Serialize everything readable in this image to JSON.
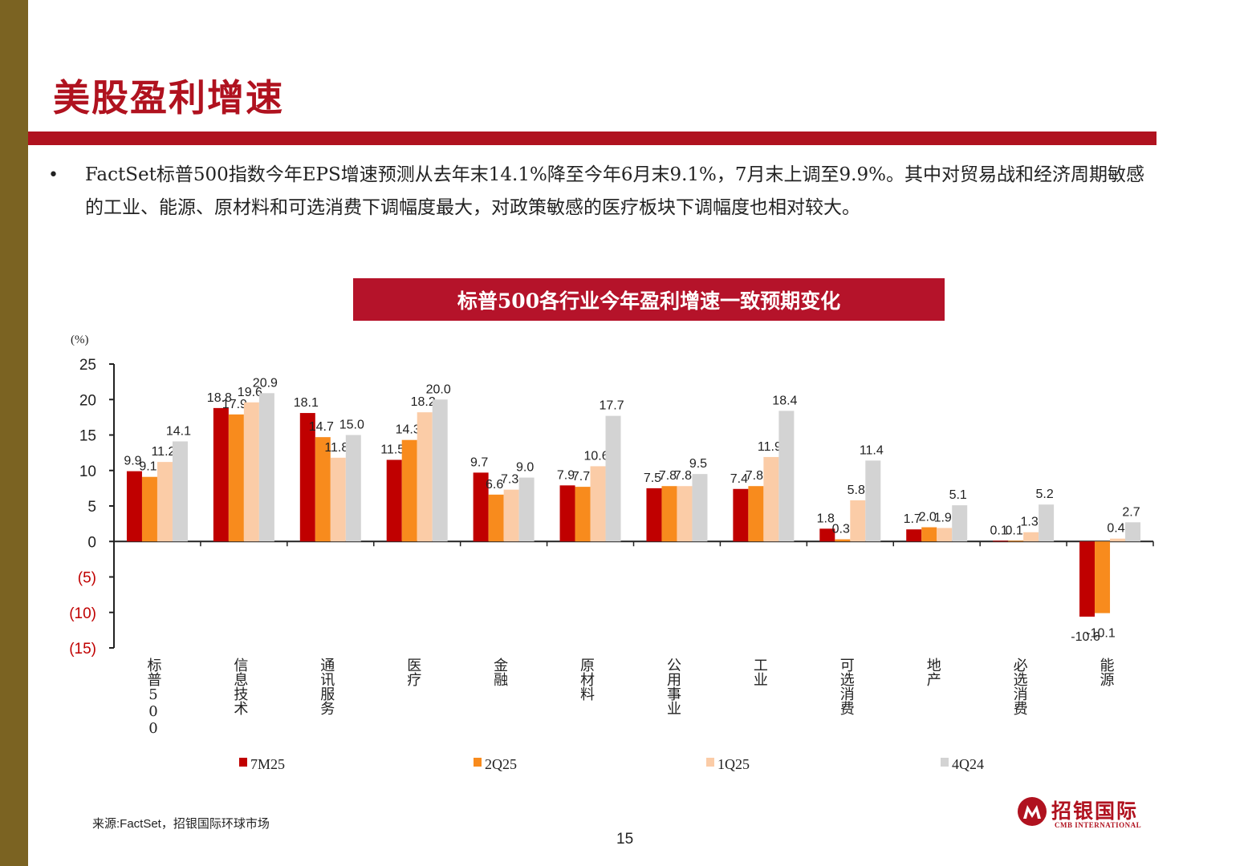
{
  "page": {
    "title": "美股盈利增速",
    "bullet": "FactSet标普500指数今年EPS增速预测从去年末14.1%降至今年6月末9.1%，7月末上调至9.9%。其中对贸易战和经济周期敏感的工业、能源、原材料和可选消费下调幅度最大，对政策敏感的医疗板块下调幅度也相对较大。",
    "source": "来源:FactSet，招银国际环球市场",
    "page_number": "15",
    "logo": {
      "cn": "招银国际",
      "en": "CMB INTERNATIONAL"
    },
    "colors": {
      "brand": "#b0121f",
      "sidebar": "#7b6322"
    }
  },
  "chart_data": {
    "type": "bar",
    "title": "标普500各行业今年盈利增速一致预期变化",
    "unit_label": "(%)",
    "categories": [
      "标普500",
      "信息技术",
      "通讯服务",
      "医疗",
      "金融",
      "原材料",
      "公用事业",
      "工业",
      "可选消费",
      "地产",
      "必选消费",
      "能源"
    ],
    "series": [
      {
        "name": "7M25",
        "color": "#c00000",
        "values": [
          9.9,
          18.8,
          18.1,
          11.5,
          9.7,
          7.9,
          7.5,
          7.4,
          1.8,
          1.7,
          0.1,
          -10.6
        ]
      },
      {
        "name": "2Q25",
        "color": "#f88b1d",
        "values": [
          9.1,
          17.9,
          14.7,
          14.3,
          6.6,
          7.7,
          7.8,
          7.8,
          0.3,
          2.0,
          0.1,
          -10.1
        ]
      },
      {
        "name": "1Q25",
        "color": "#fbcca7",
        "values": [
          11.2,
          19.6,
          11.8,
          18.2,
          7.3,
          10.6,
          7.8,
          11.9,
          5.8,
          1.9,
          1.3,
          0.4
        ]
      },
      {
        "name": "4Q24",
        "color": "#d3d3d3",
        "values": [
          14.1,
          20.9,
          15.0,
          20.0,
          9.0,
          17.7,
          9.5,
          18.4,
          11.4,
          5.1,
          5.2,
          2.7
        ]
      }
    ],
    "ylim": [
      -15,
      25
    ],
    "yticks": [
      25,
      20,
      15,
      10,
      5,
      0,
      -5,
      -10,
      -15
    ],
    "ytick_labels": [
      "25",
      "20",
      "15",
      "10",
      "5",
      "0",
      "(5)",
      "(10)",
      "(15)"
    ],
    "grid": false,
    "legend": "bottom"
  }
}
